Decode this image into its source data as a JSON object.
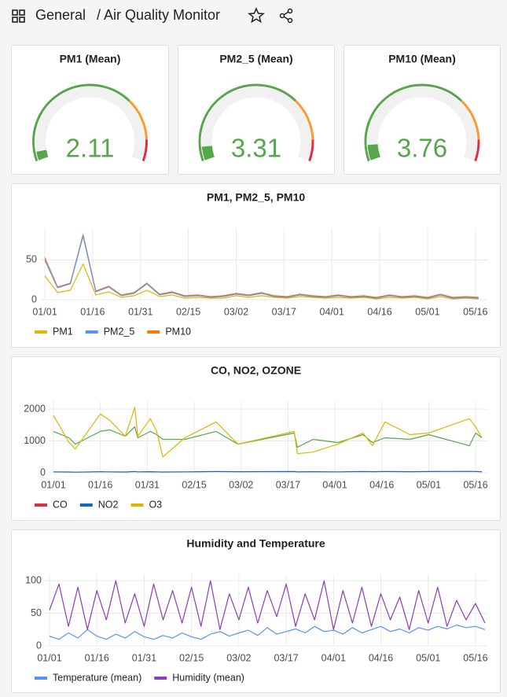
{
  "header": {
    "folder": "General",
    "title": "/ Air Quality Monitor"
  },
  "chart_data": [
    {
      "type": "gauge",
      "title": "PM1 (Mean)",
      "value": 2.11,
      "min": 0,
      "max": 50,
      "thresholds": [
        {
          "value": 0,
          "color": "#56a64b"
        },
        {
          "value": 35,
          "color": "#ff9830"
        },
        {
          "value": 45,
          "color": "#e02f44"
        }
      ]
    },
    {
      "type": "gauge",
      "title": "PM2_5 (Mean)",
      "value": 3.31,
      "min": 0,
      "max": 50,
      "thresholds": [
        {
          "value": 0,
          "color": "#56a64b"
        },
        {
          "value": 35,
          "color": "#ff9830"
        },
        {
          "value": 45,
          "color": "#e02f44"
        }
      ]
    },
    {
      "type": "gauge",
      "title": "PM10 (Mean)",
      "value": 3.76,
      "min": 0,
      "max": 50,
      "thresholds": [
        {
          "value": 0,
          "color": "#56a64b"
        },
        {
          "value": 35,
          "color": "#ff9830"
        },
        {
          "value": 45,
          "color": "#e02f44"
        }
      ]
    },
    {
      "type": "line",
      "title": "PM1, PM2_5, PM10",
      "x": [
        "01/01",
        "01/05",
        "01/09",
        "01/13",
        "01/17",
        "01/21",
        "01/25",
        "01/29",
        "02/02",
        "02/06",
        "02/10",
        "02/14",
        "02/18",
        "02/22",
        "02/26",
        "03/02",
        "03/06",
        "03/10",
        "03/14",
        "03/18",
        "03/22",
        "03/26",
        "03/30",
        "04/03",
        "04/07",
        "04/11",
        "04/15",
        "04/19",
        "04/23",
        "04/27",
        "05/01",
        "05/05",
        "05/09",
        "05/13",
        "05/17"
      ],
      "series": [
        {
          "name": "PM1",
          "color": "#e0b400",
          "values": [
            30,
            9,
            12,
            45,
            6,
            10,
            3,
            5,
            12,
            4,
            6,
            2,
            3,
            2,
            2,
            5,
            3,
            5,
            3,
            2,
            4,
            3,
            2,
            3,
            2,
            3,
            1,
            3,
            2,
            3,
            1,
            4,
            1,
            2,
            1
          ]
        },
        {
          "name": "PM2_5",
          "color": "#5794f2",
          "values": [
            50,
            15,
            20,
            80,
            10,
            16,
            5,
            8,
            20,
            6,
            9,
            4,
            5,
            3,
            4,
            7,
            5,
            8,
            4,
            3,
            6,
            4,
            3,
            5,
            3,
            4,
            2,
            5,
            3,
            4,
            2,
            6,
            2,
            3,
            2
          ]
        },
        {
          "name": "PM10",
          "color": "#ff780a",
          "values": [
            53,
            16,
            21,
            82,
            11,
            17,
            6,
            9,
            21,
            7,
            10,
            5,
            6,
            4,
            5,
            8,
            6,
            9,
            5,
            4,
            7,
            5,
            4,
            6,
            4,
            5,
            3,
            6,
            4,
            5,
            3,
            7,
            3,
            4,
            3
          ]
        }
      ],
      "draw_order": [
        2,
        0,
        1
      ],
      "xlim": [
        "01/01",
        "05/20"
      ],
      "xticks": [
        "01/01",
        "01/16",
        "01/31",
        "02/15",
        "03/02",
        "03/17",
        "04/01",
        "04/16",
        "05/01",
        "05/16"
      ],
      "ylim": [
        0,
        90
      ],
      "yticks": [
        0,
        50
      ],
      "grid": true
    },
    {
      "type": "line",
      "title": "CO, NO2, OZONE",
      "x": [
        "01/01",
        "01/06",
        "01/08",
        "01/16",
        "01/19",
        "01/24",
        "01/27",
        "01/28",
        "02/01",
        "02/03",
        "02/05",
        "02/12",
        "02/22",
        "03/01",
        "03/19",
        "03/20",
        "03/25",
        "04/02",
        "04/10",
        "04/13",
        "04/17",
        "04/25",
        "05/01",
        "05/14",
        "05/16",
        "05/18"
      ],
      "series": [
        {
          "name": "CO",
          "color": "#e02f44",
          "line_color": "#56a64b",
          "values": [
            1300,
            1100,
            900,
            1300,
            1350,
            1150,
            1450,
            1100,
            1300,
            1200,
            1050,
            1050,
            1300,
            900,
            1250,
            800,
            1050,
            950,
            1200,
            950,
            1100,
            1050,
            1200,
            850,
            1250,
            1100
          ]
        },
        {
          "name": "NO2",
          "color": "#1f60c4",
          "values": [
            30,
            25,
            20,
            35,
            30,
            25,
            40,
            30,
            35,
            30,
            25,
            30,
            40,
            35,
            40,
            30,
            35,
            30,
            40,
            35,
            40,
            35,
            40,
            45,
            40,
            35
          ]
        },
        {
          "name": "O3",
          "color": "#e0b400",
          "values": [
            1800,
            950,
            750,
            1850,
            1650,
            1150,
            2050,
            1150,
            1700,
            1300,
            500,
            1100,
            1600,
            900,
            1300,
            600,
            650,
            900,
            1250,
            850,
            1600,
            1200,
            1250,
            1700,
            1450,
            1100
          ]
        }
      ],
      "xlim": [
        "01/01",
        "05/20"
      ],
      "xticks": [
        "01/01",
        "01/16",
        "01/31",
        "02/15",
        "03/02",
        "03/17",
        "04/01",
        "04/16",
        "05/01",
        "05/16"
      ],
      "ylim": [
        0,
        2250
      ],
      "yticks": [
        0,
        1000,
        2000
      ],
      "grid": true
    },
    {
      "type": "line",
      "title": "Humidity and Temperature",
      "x": [
        "01/01",
        "01/04",
        "01/07",
        "01/10",
        "01/13",
        "01/16",
        "01/19",
        "01/22",
        "01/25",
        "01/28",
        "01/31",
        "02/03",
        "02/06",
        "02/09",
        "02/12",
        "02/15",
        "02/18",
        "02/21",
        "02/24",
        "02/27",
        "03/02",
        "03/05",
        "03/08",
        "03/11",
        "03/14",
        "03/17",
        "03/20",
        "03/23",
        "03/26",
        "03/29",
        "04/01",
        "04/04",
        "04/07",
        "04/10",
        "04/13",
        "04/16",
        "04/19",
        "04/22",
        "04/25",
        "04/28",
        "05/01",
        "05/04",
        "05/07",
        "05/10",
        "05/13",
        "05/16",
        "05/19"
      ],
      "series": [
        {
          "name": "Temperature (mean)",
          "color": "#5794f2",
          "values": [
            15,
            10,
            20,
            12,
            25,
            15,
            10,
            18,
            12,
            22,
            14,
            10,
            16,
            12,
            20,
            14,
            10,
            18,
            22,
            15,
            20,
            24,
            16,
            28,
            18,
            22,
            26,
            20,
            30,
            22,
            24,
            18,
            28,
            20,
            25,
            30,
            22,
            26,
            20,
            28,
            24,
            30,
            26,
            32,
            28,
            30,
            25
          ]
        },
        {
          "name": "Humidity (mean)",
          "color": "#8f3bb8",
          "values": [
            55,
            95,
            30,
            90,
            25,
            85,
            40,
            100,
            35,
            80,
            30,
            95,
            40,
            85,
            35,
            90,
            30,
            100,
            25,
            80,
            40,
            90,
            35,
            85,
            45,
            95,
            30,
            80,
            40,
            100,
            25,
            85,
            35,
            90,
            30,
            80,
            40,
            75,
            25,
            85,
            35,
            90,
            30,
            70,
            40,
            65,
            35
          ]
        }
      ],
      "xlim": [
        "01/01",
        "05/20"
      ],
      "xticks": [
        "01/01",
        "01/16",
        "01/31",
        "02/15",
        "03/02",
        "03/17",
        "04/01",
        "04/16",
        "05/01",
        "05/16"
      ],
      "ylim": [
        0,
        110
      ],
      "yticks": [
        0,
        50,
        100
      ],
      "grid": true
    }
  ]
}
